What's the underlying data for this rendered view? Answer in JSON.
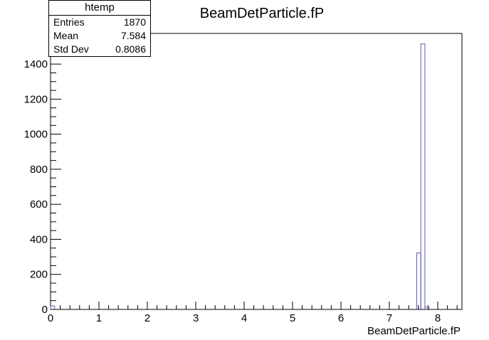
{
  "stats": {
    "title": "htemp",
    "rows": [
      {
        "label": "Entries",
        "value": "1870"
      },
      {
        "label": "Mean",
        "value": "7.584"
      },
      {
        "label": "Std Dev",
        "value": "0.8086"
      }
    ]
  },
  "chart_data": {
    "type": "bar",
    "title": "BeamDetParticle.fP",
    "xlabel": "BeamDetParticle.fP",
    "ylabel": "",
    "xlim": [
      0,
      8.5
    ],
    "ylim": [
      0,
      1575
    ],
    "x_ticks": [
      "0",
      "1",
      "2",
      "3",
      "4",
      "5",
      "6",
      "7",
      "8"
    ],
    "y_ticks": [
      "0",
      "200",
      "400",
      "600",
      "800",
      "1000",
      "1200",
      "1400"
    ],
    "bins": [
      {
        "x_low": 0.0,
        "x_high": 0.085,
        "value": 20
      },
      {
        "x_low": 7.565,
        "x_high": 7.65,
        "value": 322
      },
      {
        "x_low": 7.65,
        "x_high": 7.735,
        "value": 1515
      },
      {
        "x_low": 7.735,
        "x_high": 7.82,
        "value": 13
      }
    ],
    "line_color": "#5a5ab4",
    "grid": false,
    "legend": "top-left stats box"
  }
}
